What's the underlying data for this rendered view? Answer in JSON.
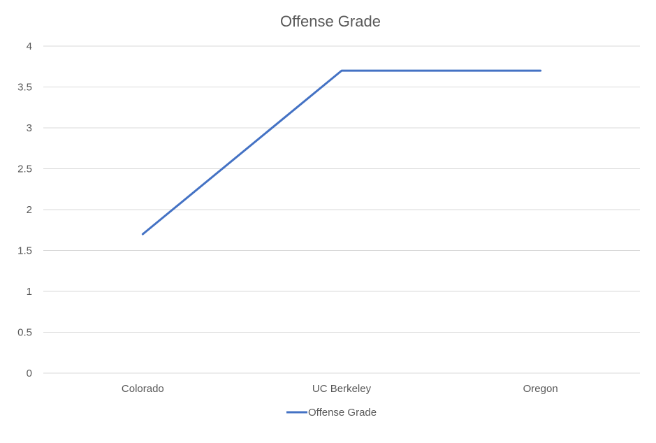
{
  "chart_data": {
    "type": "line",
    "title": "Offense Grade",
    "xlabel": "",
    "ylabel": "",
    "categories": [
      "Colorado",
      "UC Berkeley",
      "Oregon"
    ],
    "series": [
      {
        "name": "Offense Grade",
        "values": [
          1.7,
          3.7,
          3.7
        ],
        "color": "#4472c4"
      }
    ],
    "ylim": [
      0,
      4
    ],
    "yticks": [
      "0",
      "0.5",
      "1",
      "1.5",
      "2",
      "2.5",
      "3",
      "3.5",
      "4"
    ],
    "grid": true,
    "legend_position": "bottom"
  }
}
